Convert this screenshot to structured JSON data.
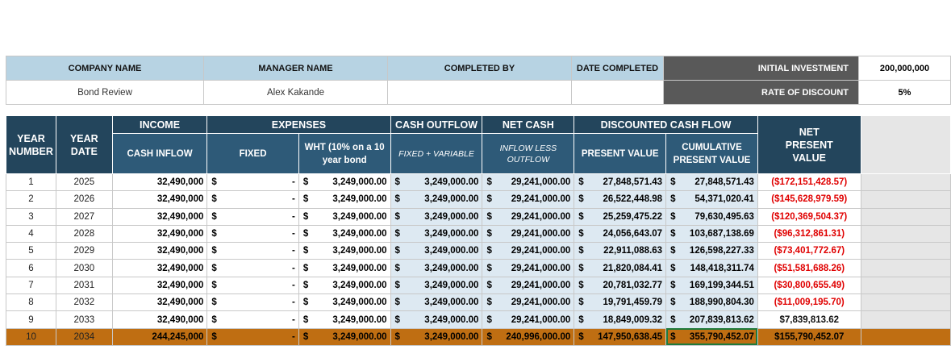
{
  "info": {
    "company_label": "COMPANY NAME",
    "manager_label": "MANAGER NAME",
    "completed_by_label": "COMPLETED BY",
    "date_completed_label": "DATE COMPLETED",
    "initial_investment_label": "INITIAL INVESTMENT",
    "initial_investment_value": "200,000,000",
    "rate_label": "RATE OF DISCOUNT",
    "rate_value": "5%",
    "company_value": "Bond Review",
    "manager_value": "Alex Kakande",
    "completed_by_value": "",
    "date_completed_value": ""
  },
  "headers": {
    "year_number": "YEAR NUMBER",
    "year_date": "YEAR DATE",
    "income": "INCOME",
    "cash_inflow": "CASH INFLOW",
    "expenses": "EXPENSES",
    "fixed": "FIXED",
    "wht": "WHT (10% on a 10 year bond",
    "cash_outflow": "CASH OUTFLOW",
    "fixed_variable": "FIXED + VARIABLE",
    "net_cash": "NET CASH",
    "inflow_less_outflow": "INFLOW LESS OUTFLOW",
    "dcf": "DISCOUNTED CASH FLOW",
    "present_value": "PRESENT VALUE",
    "cumulative_pv": "CUMULATIVE PRESENT VALUE",
    "npv": "NET PRESENT VALUE"
  },
  "currency_symbol": "$",
  "rows": [
    {
      "n": "1",
      "year": "2025",
      "inflow": "32,490,000",
      "fixed": "-",
      "wht": "3,249,000.00",
      "outflow": "3,249,000.00",
      "net": "29,241,000.00",
      "pv": "27,848,571.43",
      "cum": "27,848,571.43",
      "npv": "($172,151,428.57)",
      "neg": true
    },
    {
      "n": "2",
      "year": "2026",
      "inflow": "32,490,000",
      "fixed": "-",
      "wht": "3,249,000.00",
      "outflow": "3,249,000.00",
      "net": "29,241,000.00",
      "pv": "26,522,448.98",
      "cum": "54,371,020.41",
      "npv": "($145,628,979.59)",
      "neg": true
    },
    {
      "n": "3",
      "year": "2027",
      "inflow": "32,490,000",
      "fixed": "-",
      "wht": "3,249,000.00",
      "outflow": "3,249,000.00",
      "net": "29,241,000.00",
      "pv": "25,259,475.22",
      "cum": "79,630,495.63",
      "npv": "($120,369,504.37)",
      "neg": true
    },
    {
      "n": "4",
      "year": "2028",
      "inflow": "32,490,000",
      "fixed": "-",
      "wht": "3,249,000.00",
      "outflow": "3,249,000.00",
      "net": "29,241,000.00",
      "pv": "24,056,643.07",
      "cum": "103,687,138.69",
      "npv": "($96,312,861.31)",
      "neg": true
    },
    {
      "n": "5",
      "year": "2029",
      "inflow": "32,490,000",
      "fixed": "-",
      "wht": "3,249,000.00",
      "outflow": "3,249,000.00",
      "net": "29,241,000.00",
      "pv": "22,911,088.63",
      "cum": "126,598,227.33",
      "npv": "($73,401,772.67)",
      "neg": true
    },
    {
      "n": "6",
      "year": "2030",
      "inflow": "32,490,000",
      "fixed": "-",
      "wht": "3,249,000.00",
      "outflow": "3,249,000.00",
      "net": "29,241,000.00",
      "pv": "21,820,084.41",
      "cum": "148,418,311.74",
      "npv": "($51,581,688.26)",
      "neg": true
    },
    {
      "n": "7",
      "year": "2031",
      "inflow": "32,490,000",
      "fixed": "-",
      "wht": "3,249,000.00",
      "outflow": "3,249,000.00",
      "net": "29,241,000.00",
      "pv": "20,781,032.77",
      "cum": "169,199,344.51",
      "npv": "($30,800,655.49)",
      "neg": true
    },
    {
      "n": "8",
      "year": "2032",
      "inflow": "32,490,000",
      "fixed": "-",
      "wht": "3,249,000.00",
      "outflow": "3,249,000.00",
      "net": "29,241,000.00",
      "pv": "19,791,459.79",
      "cum": "188,990,804.30",
      "npv": "($11,009,195.70)",
      "neg": true
    },
    {
      "n": "9",
      "year": "2033",
      "inflow": "32,490,000",
      "fixed": "-",
      "wht": "3,249,000.00",
      "outflow": "3,249,000.00",
      "net": "29,241,000.00",
      "pv": "18,849,009.32",
      "cum": "207,839,813.62",
      "npv": "$7,839,813.62",
      "neg": false
    },
    {
      "n": "10",
      "year": "2034",
      "inflow": "244,245,000",
      "fixed": "-",
      "wht": "3,249,000.00",
      "outflow": "3,249,000.00",
      "net": "240,996,000.00",
      "pv": "147,950,638.45",
      "cum": "355,790,452.07",
      "npv": "$155,790,452.07",
      "neg": false
    }
  ],
  "colors": {
    "header_dark": "#23455c",
    "header_mid": "#2e5a78",
    "label_blue": "#b7d3e3",
    "cell_blue": "#dde9f2",
    "highlight_row": "#bf6e12",
    "negative": "#e00000"
  }
}
